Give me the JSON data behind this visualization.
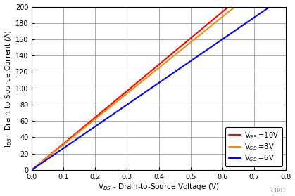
{
  "title": "",
  "xlabel": "V$_{DS}$ - Drain-to-Source Voltage (V)",
  "ylabel": "I$_{DS}$ - Drain-to-Source Current (A)",
  "xlim": [
    0,
    0.8
  ],
  "ylim": [
    0,
    200
  ],
  "xticks": [
    0,
    0.1,
    0.2,
    0.3,
    0.4,
    0.5,
    0.6,
    0.7,
    0.8
  ],
  "yticks": [
    0,
    20,
    40,
    60,
    80,
    100,
    120,
    140,
    160,
    180,
    200
  ],
  "grid": true,
  "legend_loc": "lower right",
  "curves": [
    {
      "label": "V$_{GS}$ =10V",
      "color": "#FF0000",
      "linewidth": 1.5,
      "vds": [
        0,
        0.62
      ],
      "ids": [
        0,
        200
      ]
    },
    {
      "label": "V$_{GS}$ =8V",
      "color": "#FF8C00",
      "linewidth": 1.5,
      "vds": [
        0,
        0.64
      ],
      "ids": [
        0,
        200
      ]
    },
    {
      "label": "V$_{GS}$ =6V",
      "color": "#0000FF",
      "linewidth": 1.5,
      "vds": [
        0,
        0.75
      ],
      "ids": [
        0,
        200
      ]
    }
  ],
  "watermark": "G001",
  "background_color": "#FFFFFF",
  "grid_color": "#888888",
  "legend_fontsize": 7.0,
  "axis_label_fontsize": 7.5,
  "tick_fontsize": 7.0
}
